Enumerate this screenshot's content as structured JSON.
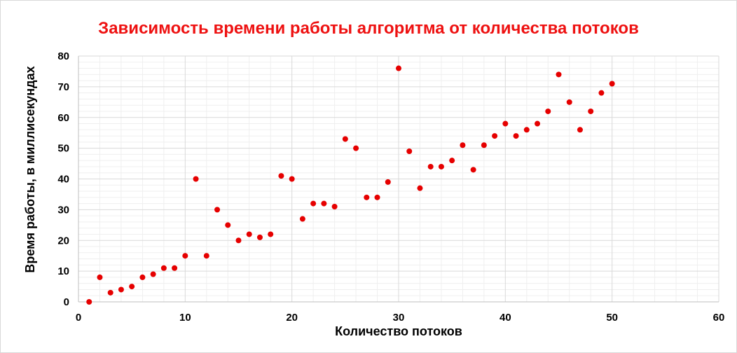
{
  "chart_data": {
    "type": "scatter",
    "title": "Зависимость времени работы алгоритма от количества потоков",
    "xlabel": "Количество потоков",
    "ylabel": "Время работы, в миллисекундах",
    "xlim": [
      0,
      60
    ],
    "ylim": [
      0,
      80
    ],
    "xticks": [
      0,
      10,
      20,
      30,
      40,
      50,
      60
    ],
    "yticks": [
      0,
      10,
      20,
      30,
      40,
      50,
      60,
      70,
      80
    ],
    "grid": true,
    "legend": "none",
    "colors": {
      "title": "#ee1111",
      "points": "#e60000",
      "grid": "#d9d9d9"
    },
    "series": [
      {
        "x": [
          1,
          2,
          3,
          4,
          5,
          6,
          7,
          8,
          9,
          10,
          11,
          12,
          13,
          14,
          15,
          16,
          17,
          18,
          19,
          20,
          21,
          22,
          23,
          24,
          25,
          26,
          27,
          28,
          29,
          30,
          31,
          32,
          33,
          34,
          35,
          36,
          37,
          38,
          39,
          40,
          41,
          42,
          43,
          44,
          45,
          46,
          47,
          48,
          49,
          50
        ],
        "y": [
          0,
          8,
          3,
          4,
          5,
          8,
          9,
          11,
          11,
          15,
          40,
          15,
          30,
          25,
          20,
          22,
          21,
          22,
          41,
          40,
          27,
          32,
          32,
          31,
          53,
          50,
          34,
          34,
          39,
          76,
          49,
          37,
          44,
          44,
          46,
          51,
          43,
          51,
          54,
          58,
          54,
          56,
          58,
          62,
          74,
          65,
          56,
          62,
          68,
          71
        ]
      }
    ]
  }
}
